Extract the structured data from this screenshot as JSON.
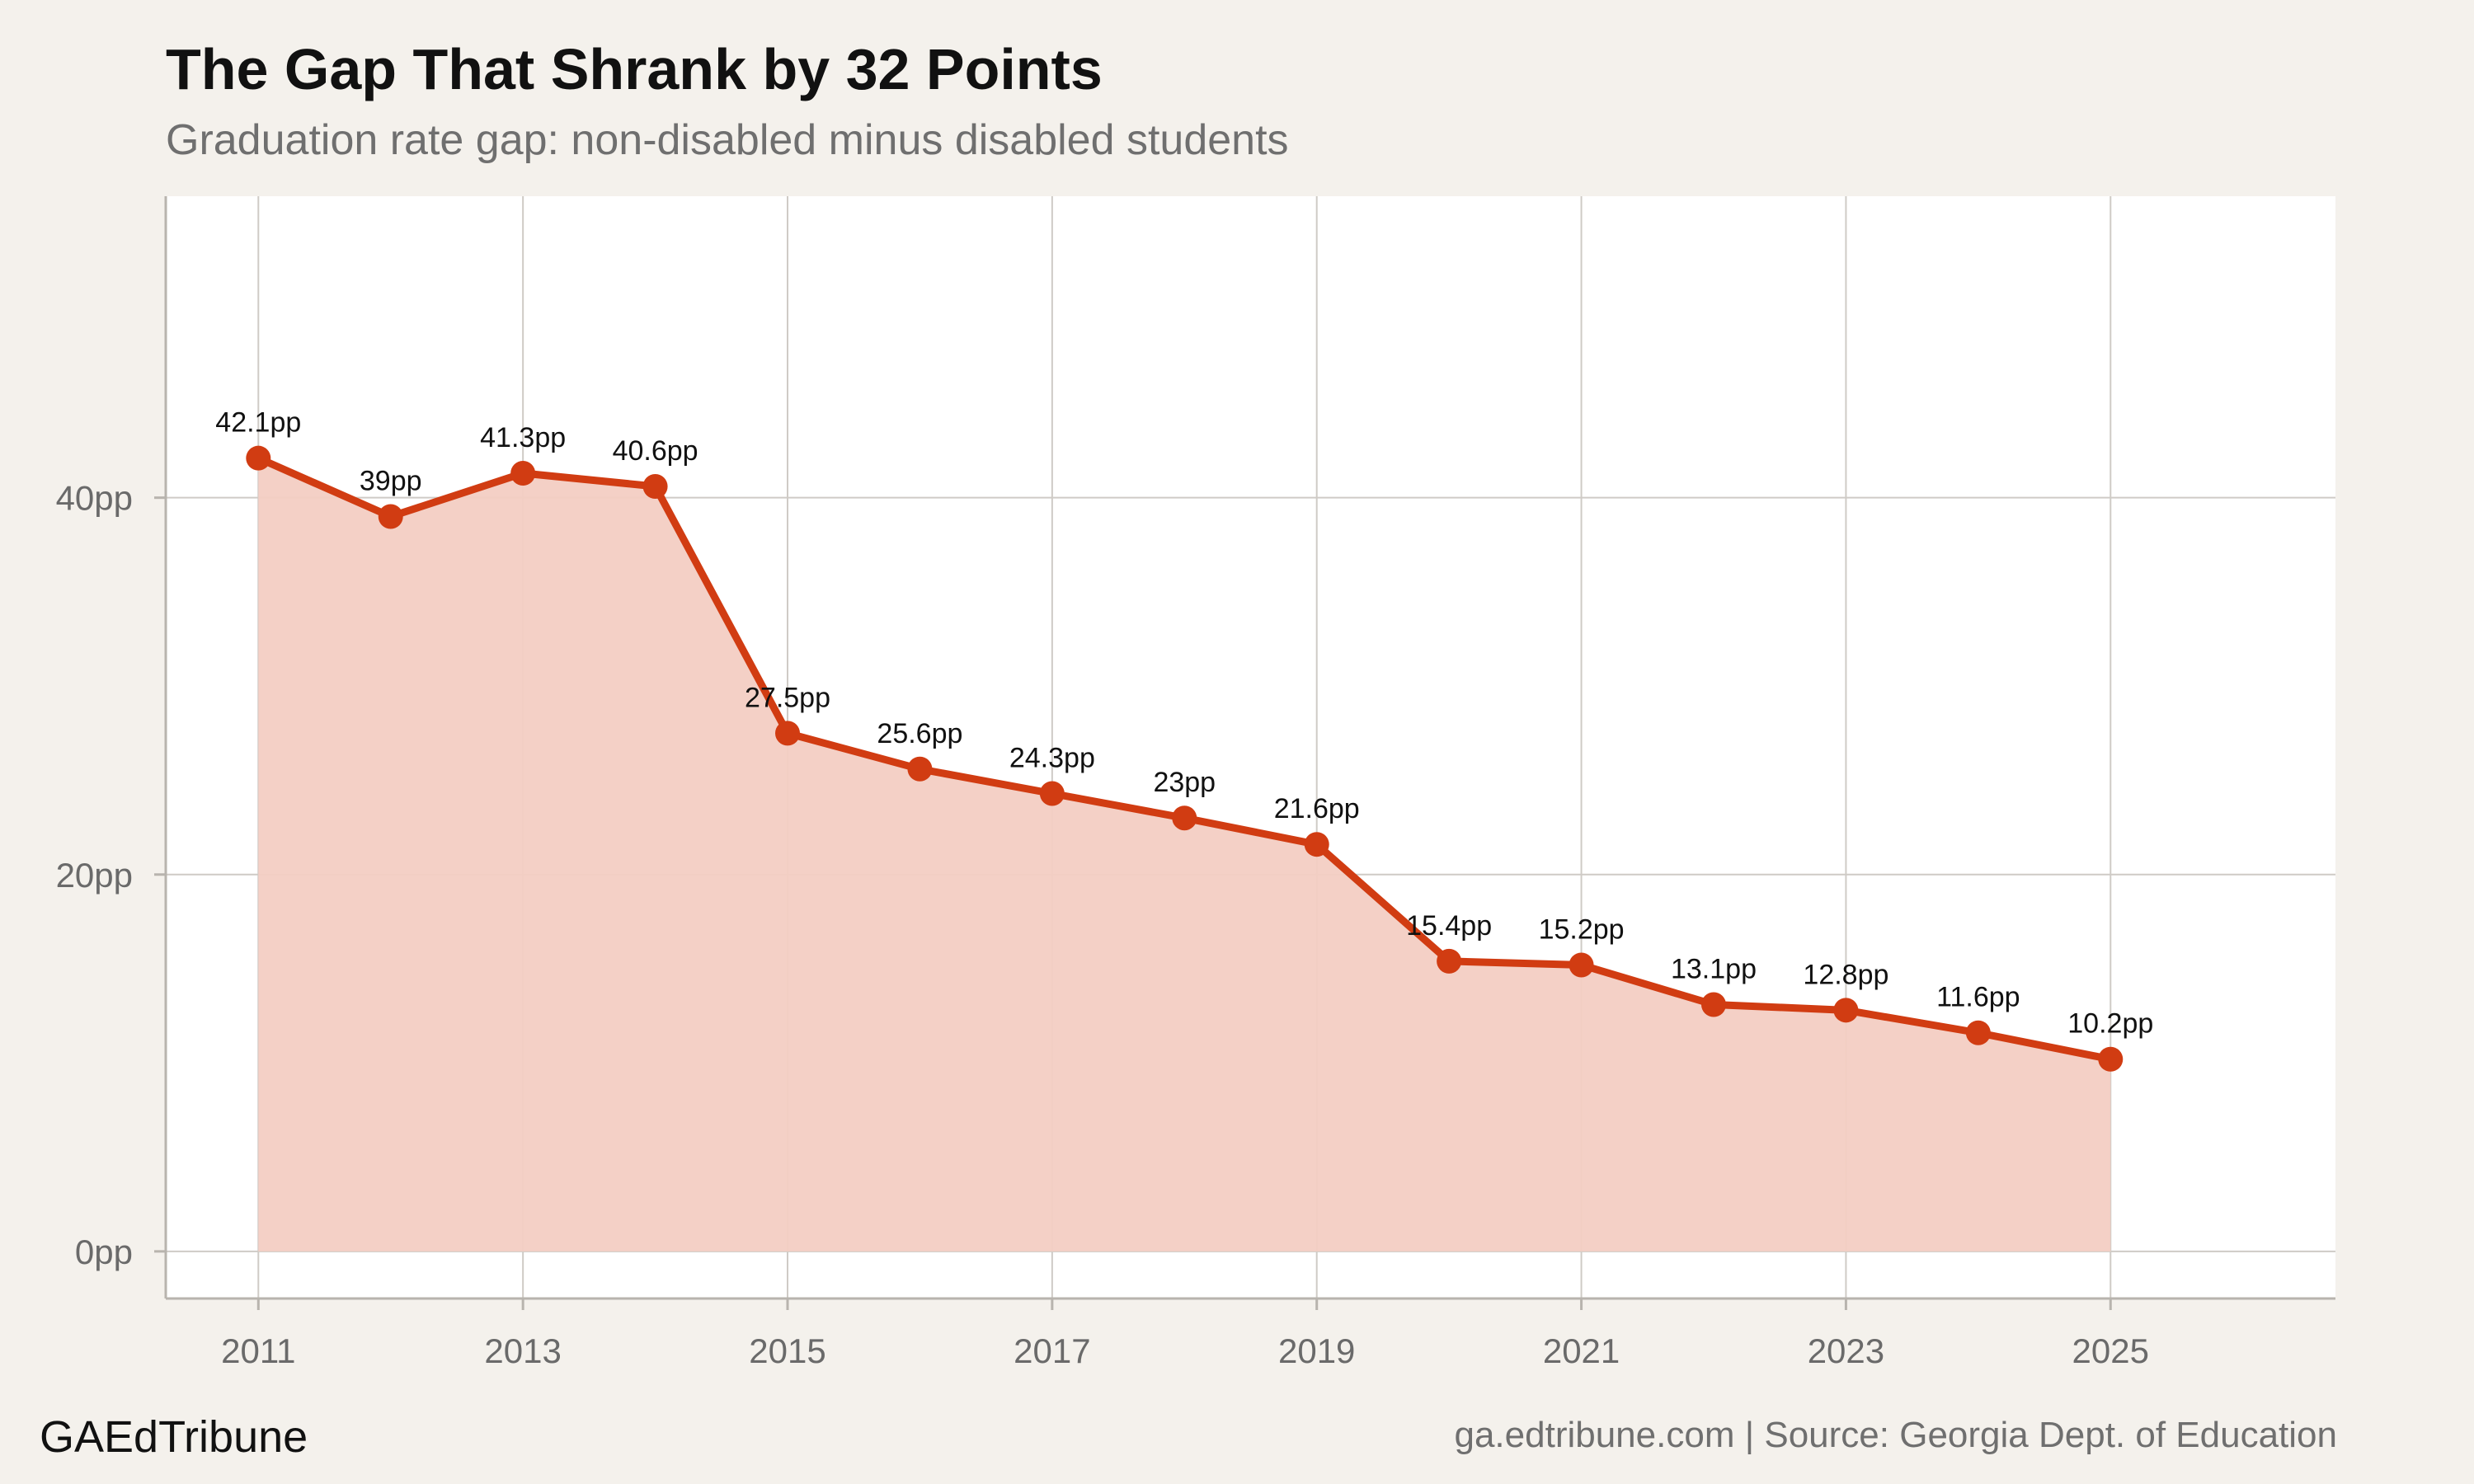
{
  "header": {
    "title": "The Gap That Shrank by 32 Points",
    "subtitle": "Graduation rate gap: non-disabled minus disabled students"
  },
  "footer": {
    "brand": "GAEdTribune",
    "source": "ga.edtribune.com | Source: Georgia Dept. of Education"
  },
  "colors": {
    "line": "#d13c12",
    "fill": "#f3cdc3",
    "panel": "#ffffff",
    "background": "#f4f1ec",
    "grid": "#cfcbc6"
  },
  "chart_data": {
    "type": "area",
    "x": [
      2011,
      2012,
      2013,
      2014,
      2015,
      2016,
      2017,
      2018,
      2019,
      2020,
      2021,
      2022,
      2023,
      2024,
      2025
    ],
    "series": [
      {
        "values": [
          42.1,
          39,
          41.3,
          40.6,
          27.5,
          25.6,
          24.3,
          23,
          21.6,
          15.4,
          15.2,
          13.1,
          12.8,
          11.6,
          10.2
        ]
      }
    ],
    "data_labels": [
      "42.1pp",
      "39pp",
      "41.3pp",
      "40.6pp",
      "27.5pp",
      "25.6pp",
      "24.3pp",
      "23pp",
      "21.6pp",
      "15.4pp",
      "15.2pp",
      "13.1pp",
      "12.8pp",
      "11.6pp",
      "10.2pp"
    ],
    "x_ticks": [
      2011,
      2013,
      2015,
      2017,
      2019,
      2021,
      2023,
      2025
    ],
    "x_tick_labels": [
      "2011",
      "2013",
      "2015",
      "2017",
      "2019",
      "2021",
      "2023",
      "2025"
    ],
    "y_ticks": [
      0,
      20,
      40
    ],
    "y_tick_labels": [
      "0pp",
      "20pp",
      "40pp"
    ],
    "xlim": [
      2010.3,
      2026.7
    ],
    "ylim": [
      -2.5,
      56
    ],
    "grid": true,
    "xlabel": "",
    "ylabel": ""
  }
}
